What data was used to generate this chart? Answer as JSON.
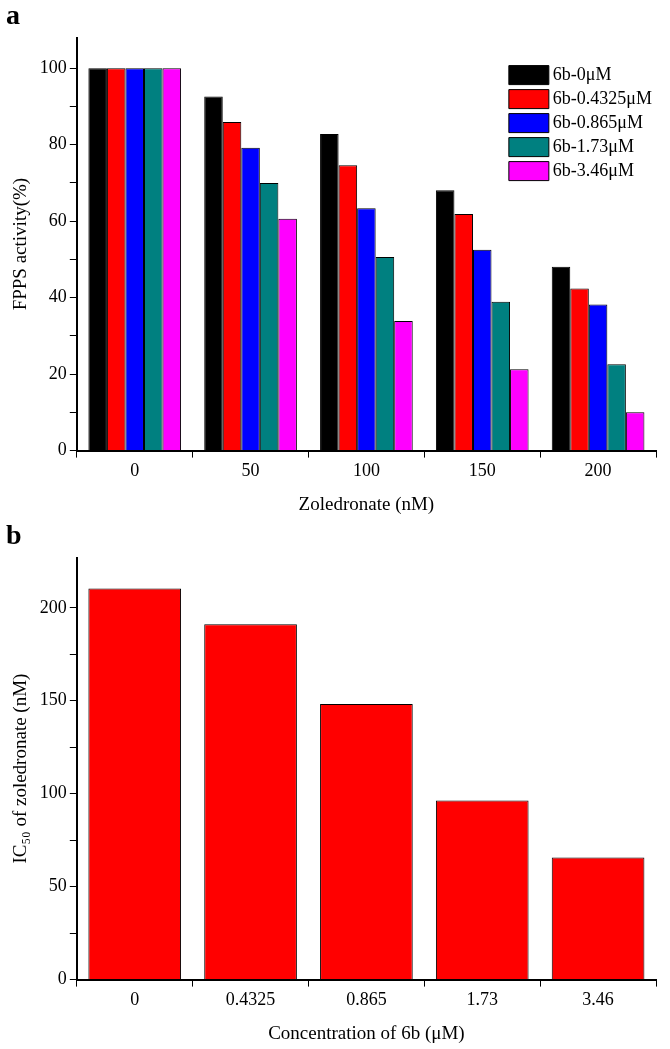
{
  "chart_data": [
    {
      "type": "bar",
      "title": "a",
      "xlabel": "Zoledronate (nM)",
      "ylabel": "FPPS activity(%)",
      "categories": [
        "0",
        "50",
        "100",
        "150",
        "200"
      ],
      "series": [
        {
          "name": "6b-0μM",
          "color": "#000000",
          "values": [
            100,
            92.6,
            82.8,
            68.1,
            48.1
          ]
        },
        {
          "name": "6b-0.4325μM",
          "color": "#ff0000",
          "values": [
            100,
            85.9,
            74.6,
            61.9,
            42.4
          ]
        },
        {
          "name": "6b-0.865μM",
          "color": "#0000ff",
          "values": [
            100,
            79.2,
            63.4,
            52.5,
            38.2
          ]
        },
        {
          "name": "6b-1.73μM",
          "color": "#008080",
          "values": [
            100,
            70.0,
            50.6,
            38.9,
            22.6
          ]
        },
        {
          "name": "6b-3.46μM",
          "color": "#ff00ff",
          "values": [
            100,
            60.6,
            33.9,
            21.3,
            10.0
          ]
        }
      ],
      "ylim": [
        0,
        108
      ],
      "yticks": [
        0,
        {
          "value": 10,
          "label": null
        },
        20,
        {
          "value": 30,
          "label": null
        },
        40,
        {
          "value": 50,
          "label": null
        },
        60,
        {
          "value": 70,
          "label": null
        },
        80,
        {
          "value": 90,
          "label": null
        },
        100
      ],
      "grid": false,
      "legend": "top right"
    },
    {
      "type": "bar",
      "title": "b",
      "xlabel": "Concentration of 6b (μM)",
      "ylabel": "IC₅₀ of zoledronate (nM)",
      "categories": [
        "0",
        "0.4325",
        "0.865",
        "1.73",
        "3.46"
      ],
      "values": [
        210.4,
        191.2,
        148.3,
        96.4,
        65.7
      ],
      "color": "#ff0000",
      "ylim": [
        0,
        227
      ],
      "yticks": [
        0,
        {
          "value": 25,
          "label": null
        },
        50,
        {
          "value": 75,
          "label": null
        },
        100,
        {
          "value": 125,
          "label": null
        },
        150,
        {
          "value": 175,
          "label": null
        },
        200
      ],
      "grid": false,
      "legend": false
    }
  ]
}
